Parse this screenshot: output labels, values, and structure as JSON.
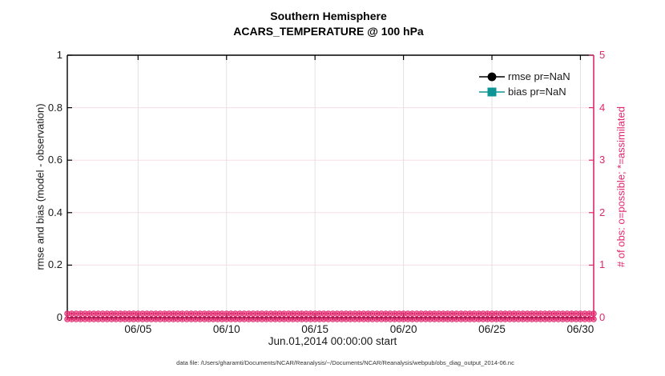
{
  "titles": {
    "line1": "Southern Hemisphere",
    "line2": "ACARS_TEMPERATURE @ 100 hPa"
  },
  "left_axis": {
    "label": "rmse and bias (model - observation)",
    "ticks": [
      "0",
      "0.2",
      "0.4",
      "0.6",
      "0.8",
      "1"
    ],
    "tick_values": [
      0,
      0.2,
      0.4,
      0.6,
      0.8,
      1
    ],
    "range": [
      0,
      1
    ],
    "color": "#1a1a1a"
  },
  "right_axis": {
    "label": "# of obs: o=possible; *=assimilated",
    "ticks": [
      "0",
      "1",
      "2",
      "3",
      "4",
      "5"
    ],
    "tick_values": [
      0,
      1,
      2,
      3,
      4,
      5
    ],
    "range": [
      0,
      5
    ],
    "color": "#e0266d"
  },
  "x_axis": {
    "label": "Jun.01,2014 00:00:00 start",
    "ticks": [
      "06/05",
      "06/10",
      "06/15",
      "06/20",
      "06/25",
      "06/30"
    ],
    "tick_days": [
      4,
      9,
      14,
      19,
      24,
      29
    ],
    "range_days": [
      0,
      29.75
    ]
  },
  "legend": {
    "items": [
      {
        "label": "rmse pr=NaN",
        "color": "#000000",
        "marker": "circle"
      },
      {
        "label": "bias pr=NaN",
        "color": "#0d9494",
        "marker": "square"
      }
    ]
  },
  "footer": "data file: /Users/gharamti/Documents/NCAR/Reanalysis/~/Documents/NCAR/Reanalysis/webpub/obs_diag_output_2014-06.nc",
  "style_colors": {
    "grid_vertical": "#e2e2e2",
    "grid_horizontal_pink": "#f9dde8",
    "axis_black": "#000000",
    "axis_pink": "#e0266d"
  },
  "chart_data": {
    "type": "line",
    "title": "Southern Hemisphere",
    "subtitle": "ACARS_TEMPERATURE @ 100 hPa",
    "xlabel": "Jun.01,2014 00:00:00 start",
    "ylabel_left": "rmse and bias (model - observation)",
    "ylabel_right": "# of obs: o=possible; *=assimilated",
    "xlim_days_from_start": [
      0,
      29.75
    ],
    "x_tick_labels": [
      "06/05",
      "06/10",
      "06/15",
      "06/20",
      "06/25",
      "06/30"
    ],
    "x_tick_days": [
      4,
      9,
      14,
      19,
      24,
      29
    ],
    "ylim_left": [
      0,
      1
    ],
    "ylim_right": [
      0,
      5
    ],
    "grid": true,
    "legend_position": "top-right-inside",
    "series": [
      {
        "name": "rmse pr=NaN",
        "axis": "left",
        "value": "NaN",
        "plotted_points": 0
      },
      {
        "name": "bias pr=NaN",
        "axis": "left",
        "value": "NaN",
        "plotted_points": 0
      },
      {
        "name": "# of obs possible (o markers)",
        "axis": "right",
        "constant_value": 0,
        "n_times": 120,
        "interval_days": 0.25
      },
      {
        "name": "# of obs assimilated (* markers)",
        "axis": "right",
        "constant_value": 0,
        "n_times": 120,
        "interval_days": 0.25
      }
    ]
  }
}
